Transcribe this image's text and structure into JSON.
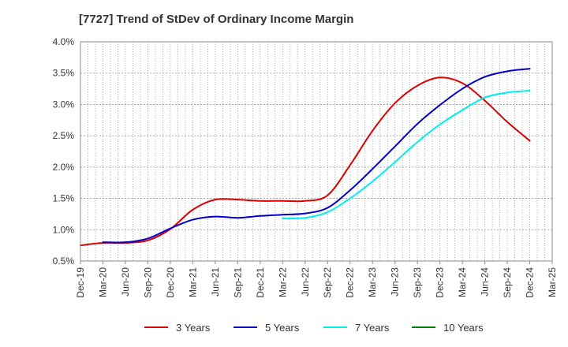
{
  "chart_data": {
    "type": "line",
    "title": "[7727]  Trend of StDev of Ordinary Income Margin",
    "xlabel": "",
    "ylabel": "",
    "categories": [
      "Dec-19",
      "Mar-20",
      "Jun-20",
      "Sep-20",
      "Dec-20",
      "Mar-21",
      "Jun-21",
      "Sep-21",
      "Dec-21",
      "Mar-22",
      "Jun-22",
      "Sep-22",
      "Dec-22",
      "Mar-23",
      "Jun-23",
      "Sep-23",
      "Dec-23",
      "Mar-24",
      "Jun-24",
      "Sep-24",
      "Dec-24",
      "Mar-25"
    ],
    "y_ticks": [
      "0.5%",
      "1.0%",
      "1.5%",
      "2.0%",
      "2.5%",
      "3.0%",
      "3.5%",
      "4.0%"
    ],
    "ylim": [
      0.5,
      4.0
    ],
    "grid": true,
    "legend_position": "bottom",
    "series": [
      {
        "name": "3 Years",
        "color": "#dd0000",
        "values": [
          0.75,
          0.79,
          0.79,
          0.83,
          1.01,
          1.32,
          1.48,
          1.48,
          1.46,
          1.46,
          1.46,
          1.55,
          2.03,
          2.58,
          3.02,
          3.3,
          3.43,
          3.34,
          3.06,
          2.72,
          2.42,
          null
        ]
      },
      {
        "name": "5 Years",
        "color": "#0000cc",
        "values": [
          null,
          0.8,
          0.8,
          0.86,
          1.02,
          1.16,
          1.21,
          1.19,
          1.22,
          1.24,
          1.26,
          1.35,
          1.63,
          1.97,
          2.33,
          2.69,
          2.99,
          3.25,
          3.44,
          3.53,
          3.57,
          null
        ]
      },
      {
        "name": "7 Years",
        "color": "#00eeee",
        "values": [
          null,
          null,
          null,
          null,
          null,
          null,
          null,
          null,
          null,
          1.18,
          1.19,
          1.28,
          1.5,
          1.77,
          2.08,
          2.4,
          2.68,
          2.91,
          3.11,
          3.19,
          3.22,
          null
        ]
      },
      {
        "name": "10 Years",
        "color": "#008000",
        "values": [
          null,
          null,
          null,
          null,
          null,
          null,
          null,
          null,
          null,
          null,
          null,
          null,
          null,
          null,
          null,
          null,
          null,
          null,
          null,
          null,
          null,
          null
        ]
      }
    ]
  }
}
